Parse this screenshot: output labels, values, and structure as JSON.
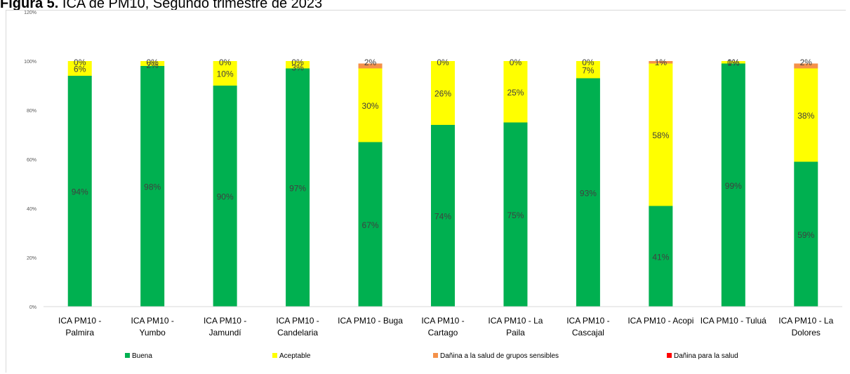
{
  "figure": {
    "label": "Figura 5.",
    "caption": "ICA de PM10, Segundo trimestre de 2023"
  },
  "colors": {
    "buena": "#00b050",
    "aceptable": "#ffff00",
    "sensibles": "#f4914a",
    "daniña": "#ff0000",
    "label_text": "#404040",
    "tick_text": "#595959",
    "axis": "#d9d9d9"
  },
  "chart_data": {
    "type": "bar",
    "stacked": true,
    "title": "",
    "xlabel": "",
    "ylabel": "",
    "ylim": [
      0,
      120
    ],
    "yticks": [
      "0%",
      "20%",
      "40%",
      "60%",
      "80%",
      "100%",
      "120%"
    ],
    "grid": false,
    "legend_position": "bottom",
    "categories": [
      [
        "ICA PM10 -",
        "Palmira"
      ],
      [
        "ICA PM10 -",
        "Yumbo"
      ],
      [
        "ICA PM10 -",
        "Jamundí"
      ],
      [
        "ICA PM10 -",
        "Candelaria"
      ],
      [
        "ICA PM10 - Buga"
      ],
      [
        "ICA PM10 -",
        "Cartago"
      ],
      [
        "ICA PM10 - La",
        "Paila"
      ],
      [
        "ICA PM10 -",
        "Cascajal"
      ],
      [
        "ICA PM10 - Acopi"
      ],
      [
        "ICA PM10 - Tuluá"
      ],
      [
        "ICA PM10 - La",
        "Dolores"
      ]
    ],
    "series": [
      {
        "name": "Buena",
        "color": "#00b050",
        "values": [
          94,
          98,
          90,
          97,
          67,
          74,
          75,
          93,
          41,
          99,
          59
        ],
        "labels": [
          "94%",
          "98%",
          "90%",
          "97%",
          "67%",
          "74%",
          "75%",
          "93%",
          "41%",
          "99%",
          "59%"
        ]
      },
      {
        "name": "Aceptable",
        "color": "#ffff00",
        "values": [
          6,
          2,
          10,
          3,
          30,
          26,
          25,
          7,
          58,
          1,
          38
        ],
        "labels": [
          "6%",
          "2%",
          "10%",
          "3%",
          "30%",
          "26%",
          "25%",
          "7%",
          "58%",
          "1%",
          "38%"
        ]
      },
      {
        "name": "Dañina a la salud de grupos sensibles",
        "color": "#f4914a",
        "values": [
          0,
          0,
          0,
          0,
          2,
          0,
          0,
          0,
          1,
          0,
          2
        ],
        "labels": [
          "0%",
          "0%",
          "0%",
          "0%",
          "2%",
          "0%",
          "0%",
          "0%",
          "1%",
          "0%",
          "2%"
        ]
      },
      {
        "name": "Dañina para la salud",
        "color": "#ff0000",
        "values": [
          0,
          0,
          0,
          0,
          0,
          0,
          0,
          0,
          0,
          0,
          0
        ],
        "labels": [
          "",
          "",
          "",
          "",
          "",
          "",
          "",
          "",
          "",
          "",
          ""
        ]
      }
    ]
  }
}
